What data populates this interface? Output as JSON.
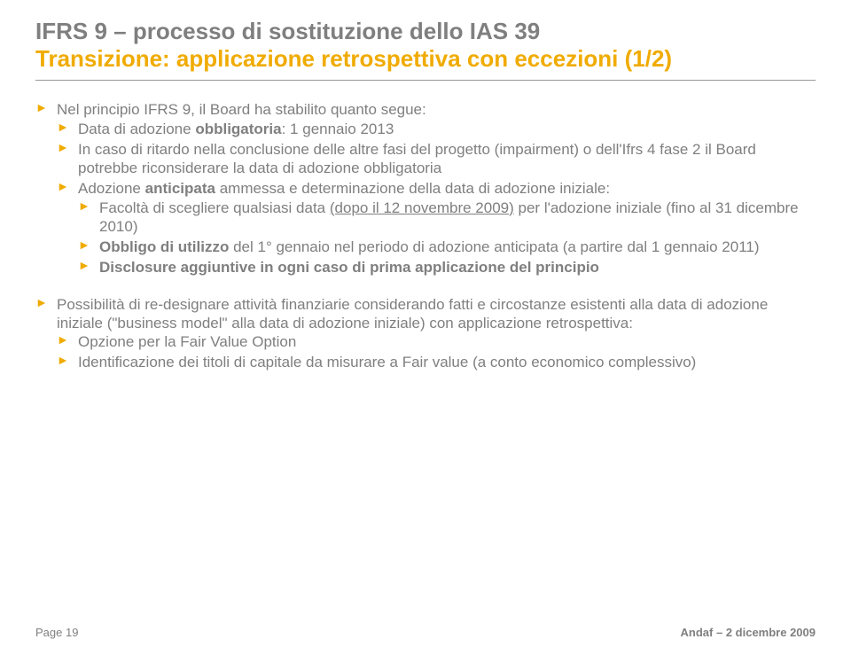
{
  "colors": {
    "heading_gray": "#7f7f7f",
    "accent_yellow": "#f0ab00",
    "body_text": "#7f7f7f",
    "underline_gray": "#999999",
    "background": "#ffffff"
  },
  "typography": {
    "title_fontsize": 26,
    "body_fontsize": 17,
    "footer_fontsize": 13,
    "font_family": "Arial"
  },
  "title": {
    "line1": "IFRS 9 – processo di sostituzione dello IAS 39",
    "line2": "Transizione: applicazione retrospettiva con eccezioni (1/2)"
  },
  "block1": {
    "lead": "Nel principio IFRS 9, il Board ha stabilito quanto segue:",
    "items": [
      {
        "prefix": "Data di adozione ",
        "bold": "obbligatoria",
        "suffix": ": 1 gennaio 2013"
      },
      {
        "text": "In caso di ritardo nella conclusione delle altre fasi del progetto (impairment) o dell'Ifrs 4 fase 2 il Board potrebbe riconsiderare la data di adozione obbligatoria"
      },
      {
        "prefix": "Adozione ",
        "bold": "anticipata",
        "suffix": " ammessa e determinazione della data di adozione iniziale:",
        "children": [
          {
            "pre": "Facoltà di scegliere qualsiasi data ",
            "underline": "(dopo il 12 novembre 2009)",
            "post": " per l'adozione iniziale (fino al 31 dicembre 2010)"
          },
          {
            "bold": "Obbligo di utilizzo",
            "rest": " del 1° gennaio nel periodo di adozione anticipata (a partire dal 1 gennaio 2011)"
          },
          {
            "bold": "Disclosure aggiuntive in ogni caso di prima applicazione del principio"
          }
        ]
      }
    ]
  },
  "block2": {
    "lead_pre": "Possibilità di re-designare attività finanziarie considerando fatti e circostanze esistenti alla data di adozione iniziale (",
    "lead_quote": "\"",
    "lead_term": "business model",
    "lead_quote2": "\"",
    "lead_post": " alla data di adozione iniziale) con applicazione retrospettiva:",
    "items": [
      {
        "text": "Opzione per la Fair Value Option"
      },
      {
        "text": "Identificazione dei titoli di capitale da misurare a Fair value (a conto economico complessivo)"
      }
    ]
  },
  "footer": {
    "left": "Page 19",
    "right": "Andaf – 2 dicembre 2009"
  }
}
